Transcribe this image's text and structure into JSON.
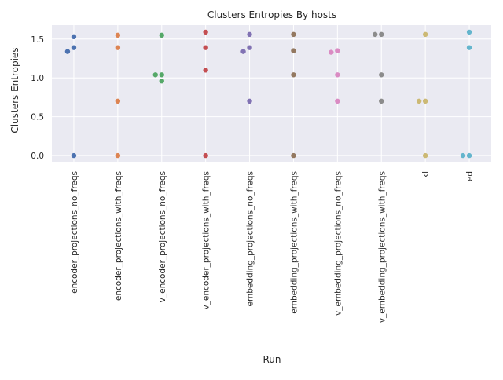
{
  "chart_data": {
    "type": "scatter",
    "subtype": "swarm",
    "title": "Clusters Entropies By hosts",
    "xlabel": "Run",
    "ylabel": "Clusters Entropies",
    "ylim": [
      -0.08,
      1.68
    ],
    "yticks": [
      0.0,
      0.5,
      1.0,
      1.5
    ],
    "ytick_labels": [
      "0.0",
      "0.5",
      "1.0",
      "1.5"
    ],
    "grid": true,
    "legend": "none",
    "categories": [
      "encoder_projections_no_freqs",
      "encoder_projections_with_freqs",
      "v_encoder_projections_no_freqs",
      "v_encoder_projections_with_freqs",
      "embedding_projections_no_freqs",
      "embedding_projections_with_freqs",
      "v_embedding_projections_no_freqs",
      "v_embedding_projections_with_freqs",
      "kl",
      "ed"
    ],
    "colors": [
      "#4c72b0",
      "#dd8452",
      "#55a868",
      "#c44e52",
      "#8172b3",
      "#937860",
      "#da8bc3",
      "#8c8c8c",
      "#ccb974",
      "#64b5cd"
    ],
    "series": [
      {
        "values": [
          1.53,
          1.39,
          1.34,
          0.0
        ]
      },
      {
        "values": [
          1.55,
          1.39,
          0.7,
          0.0
        ]
      },
      {
        "values": [
          1.55,
          1.04,
          1.04,
          0.96
        ]
      },
      {
        "values": [
          1.59,
          1.39,
          1.1,
          0.0
        ]
      },
      {
        "values": [
          1.56,
          1.39,
          1.34,
          0.7
        ]
      },
      {
        "values": [
          1.56,
          1.35,
          1.04,
          0.0
        ]
      },
      {
        "values": [
          1.35,
          1.33,
          1.04,
          0.7
        ]
      },
      {
        "values": [
          1.56,
          1.56,
          1.04,
          0.7
        ]
      },
      {
        "values": [
          1.56,
          0.7,
          0.7,
          0.0
        ]
      },
      {
        "values": [
          1.59,
          1.39,
          0.0,
          0.0
        ]
      }
    ]
  }
}
